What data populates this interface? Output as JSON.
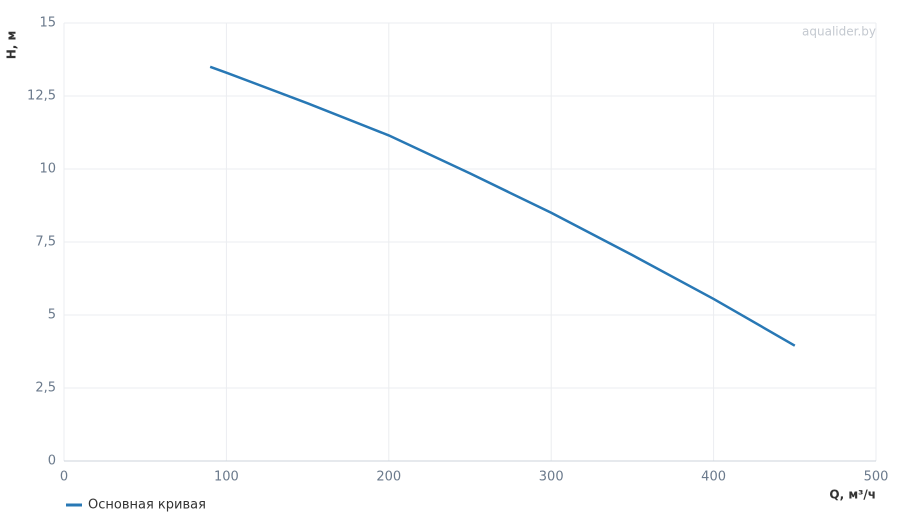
{
  "chart_data": {
    "type": "line",
    "x_label": "Q, м³/ч",
    "y_label": "H, м",
    "annotation": "aqualider.by",
    "series": [
      {
        "name": "Основная кривая",
        "color": "#2878b5",
        "x": [
          90,
          100,
          150,
          200,
          250,
          300,
          350,
          400,
          450
        ],
        "values": [
          13.5,
          13.3,
          12.25,
          11.15,
          9.85,
          8.5,
          7.05,
          5.55,
          3.95
        ]
      }
    ],
    "xlim": [
      0,
      500
    ],
    "xticks": [
      0,
      100,
      200,
      300,
      400,
      500
    ],
    "ylim": [
      0,
      15
    ],
    "yticks": [
      0,
      {
        "value": 2.5,
        "label": "2,5"
      },
      5,
      {
        "value": 7.5,
        "label": "7,5"
      },
      10,
      {
        "value": 12.5,
        "label": "12,5"
      },
      15
    ],
    "grid": true,
    "legend": "bottom-left"
  }
}
